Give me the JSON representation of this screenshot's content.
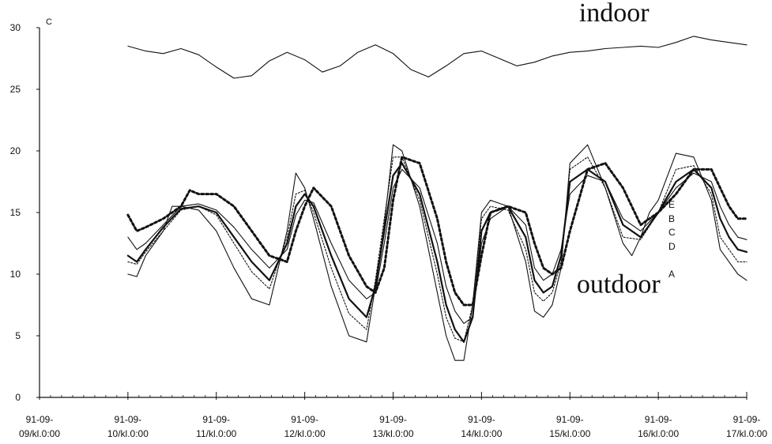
{
  "chart_data": {
    "type": "line",
    "title": "",
    "xlabel": "",
    "ylabel": "C",
    "ylim": [
      0,
      30
    ],
    "yticks": [
      0,
      5,
      10,
      15,
      20,
      25,
      30
    ],
    "xlim": [
      0,
      8
    ],
    "xticks": [
      {
        "value": 0,
        "line1": "91-09-",
        "line2": "09/kl.0:00"
      },
      {
        "value": 1,
        "line1": "91-09-",
        "line2": "10/kl.0:00"
      },
      {
        "value": 2,
        "line1": "91-09-",
        "line2": "11/kl.0:00"
      },
      {
        "value": 3,
        "line1": "91-09-",
        "line2": "12/kl.0:00"
      },
      {
        "value": 4,
        "line1": "91-09-",
        "line2": "13/kl.0:00"
      },
      {
        "value": 5,
        "line1": "91-09-",
        "line2": "14/kl.0:00"
      },
      {
        "value": 6,
        "line1": "91-09-",
        "line2": "15/kl.0:00"
      },
      {
        "value": 7,
        "line1": "91-09-",
        "line2": "16/kl.0:00"
      },
      {
        "value": 8,
        "line1": "91-09-",
        "line2": "17/kl.0:00"
      }
    ],
    "grid": false,
    "annotations": [
      {
        "text": "indoor",
        "x": 5.5,
        "y": 30.5
      },
      {
        "text": "outdoor",
        "x": 5.55,
        "y": 8.5
      }
    ],
    "series": [
      {
        "id": "indoor",
        "style": "solid-thin",
        "label": "",
        "x": [
          0.0,
          0.2,
          0.4,
          0.6,
          0.8,
          1.0,
          1.2,
          1.4,
          1.6,
          1.8,
          2.0,
          2.2,
          2.4,
          2.6,
          2.8,
          3.0,
          3.2,
          3.4,
          3.6,
          3.8,
          4.0,
          4.2,
          4.4,
          4.6,
          4.8,
          5.0,
          5.2,
          5.4,
          5.6,
          5.8,
          6.0,
          6.2,
          6.4,
          6.6,
          6.8,
          7.0
        ],
        "y": [
          28.5,
          28.1,
          27.9,
          28.3,
          27.8,
          26.8,
          25.9,
          26.1,
          27.3,
          28.0,
          27.4,
          26.4,
          26.9,
          28.0,
          28.6,
          27.9,
          26.6,
          26.0,
          26.9,
          27.9,
          28.1,
          27.5,
          26.9,
          27.2,
          27.7,
          28.0,
          28.1,
          28.3,
          28.4,
          28.5,
          28.4,
          28.8,
          29.3,
          29.0,
          28.8,
          28.6
        ]
      },
      {
        "id": "A",
        "style": "solid-thin",
        "label": "A",
        "x": [
          0.0,
          0.1,
          0.2,
          0.4,
          0.5,
          0.6,
          0.8,
          1.0,
          1.2,
          1.4,
          1.6,
          1.8,
          1.9,
          2.0,
          2.1,
          2.3,
          2.5,
          2.7,
          2.8,
          2.9,
          3.0,
          3.1,
          3.3,
          3.5,
          3.6,
          3.7,
          3.8,
          3.9,
          4.0,
          4.1,
          4.3,
          4.5,
          4.6,
          4.7,
          4.8,
          4.9,
          5.0,
          5.2,
          5.4,
          5.6,
          5.7,
          5.8,
          5.9,
          6.0,
          6.2,
          6.4,
          6.6,
          6.7,
          6.8,
          6.9,
          7.0
        ],
        "y": [
          10.0,
          9.8,
          11.5,
          13.5,
          15.5,
          15.5,
          15.2,
          13.5,
          10.5,
          8.0,
          7.5,
          13.5,
          18.2,
          17.0,
          14.5,
          9.0,
          5.0,
          4.5,
          9.0,
          14.0,
          20.5,
          20.0,
          15.5,
          8.5,
          5.0,
          3.0,
          3.0,
          7.5,
          15.0,
          16.0,
          15.5,
          11.0,
          7.0,
          6.5,
          7.5,
          10.5,
          19.0,
          20.5,
          17.0,
          12.5,
          11.5,
          13.0,
          15.0,
          16.0,
          19.8,
          19.5,
          16.0,
          12.0,
          11.0,
          10.0,
          9.5
        ]
      },
      {
        "id": "D",
        "style": "dotted-thin",
        "label": "D",
        "x": [
          0.0,
          0.1,
          0.2,
          0.4,
          0.6,
          0.8,
          1.0,
          1.2,
          1.4,
          1.6,
          1.8,
          1.9,
          2.0,
          2.1,
          2.3,
          2.5,
          2.7,
          2.8,
          2.9,
          3.0,
          3.1,
          3.3,
          3.5,
          3.6,
          3.7,
          3.8,
          3.9,
          4.0,
          4.1,
          4.3,
          4.5,
          4.6,
          4.7,
          4.8,
          4.9,
          5.0,
          5.2,
          5.4,
          5.6,
          5.8,
          6.0,
          6.2,
          6.4,
          6.6,
          6.7,
          6.8,
          6.9,
          7.0
        ],
        "y": [
          11.0,
          10.8,
          11.8,
          13.5,
          15.2,
          15.5,
          14.8,
          12.5,
          10.2,
          8.8,
          13.0,
          16.5,
          16.8,
          15.0,
          10.5,
          6.8,
          5.5,
          9.5,
          14.5,
          19.5,
          19.5,
          16.0,
          10.0,
          6.5,
          4.8,
          4.5,
          7.5,
          14.5,
          15.5,
          15.2,
          12.0,
          8.5,
          7.8,
          8.5,
          11.0,
          18.5,
          19.5,
          17.0,
          13.0,
          12.8,
          15.0,
          18.5,
          18.8,
          16.5,
          13.0,
          12.0,
          11.0,
          11.0
        ]
      },
      {
        "id": "C",
        "style": "solid-thick",
        "label": "C",
        "x": [
          0.0,
          0.1,
          0.2,
          0.4,
          0.6,
          0.8,
          1.0,
          1.2,
          1.4,
          1.6,
          1.8,
          1.9,
          2.0,
          2.1,
          2.3,
          2.5,
          2.7,
          2.8,
          2.9,
          3.0,
          3.1,
          3.3,
          3.5,
          3.6,
          3.7,
          3.8,
          3.9,
          4.0,
          4.1,
          4.3,
          4.5,
          4.6,
          4.7,
          4.8,
          4.9,
          5.0,
          5.2,
          5.4,
          5.6,
          5.8,
          6.0,
          6.2,
          6.4,
          6.6,
          6.7,
          6.8,
          6.9,
          7.0
        ],
        "y": [
          11.5,
          11.0,
          12.0,
          13.8,
          15.3,
          15.5,
          15.0,
          13.0,
          11.0,
          9.5,
          12.5,
          15.5,
          16.5,
          15.5,
          11.5,
          8.0,
          6.5,
          9.0,
          13.5,
          18.0,
          19.0,
          16.5,
          11.0,
          7.5,
          5.5,
          4.5,
          6.5,
          13.5,
          15.0,
          15.5,
          13.0,
          9.5,
          8.5,
          9.0,
          11.5,
          17.5,
          18.5,
          17.5,
          14.0,
          13.0,
          15.0,
          17.5,
          18.5,
          17.0,
          14.5,
          13.0,
          12.0,
          11.8
        ]
      },
      {
        "id": "B",
        "style": "solid-thin",
        "label": "B",
        "x": [
          0.0,
          0.1,
          0.2,
          0.4,
          0.6,
          0.8,
          1.0,
          1.2,
          1.4,
          1.6,
          1.8,
          1.9,
          2.0,
          2.1,
          2.3,
          2.5,
          2.7,
          2.8,
          2.9,
          3.0,
          3.1,
          3.3,
          3.5,
          3.6,
          3.7,
          3.8,
          3.9,
          4.0,
          4.1,
          4.3,
          4.5,
          4.6,
          4.7,
          4.8,
          4.9,
          5.0,
          5.2,
          5.4,
          5.6,
          5.8,
          6.0,
          6.2,
          6.4,
          6.6,
          6.7,
          6.8,
          6.9,
          7.0
        ],
        "y": [
          13.0,
          12.0,
          12.5,
          14.0,
          15.5,
          15.7,
          15.2,
          13.8,
          12.0,
          10.5,
          12.0,
          14.8,
          16.0,
          15.8,
          12.5,
          9.5,
          8.0,
          8.5,
          12.5,
          17.0,
          18.5,
          17.0,
          12.5,
          9.0,
          7.0,
          6.0,
          6.5,
          12.5,
          14.5,
          15.5,
          14.0,
          10.5,
          9.5,
          10.0,
          12.0,
          16.5,
          18.0,
          17.5,
          14.5,
          13.5,
          15.0,
          17.0,
          18.2,
          17.5,
          15.5,
          14.0,
          13.0,
          12.8
        ]
      },
      {
        "id": "E",
        "style": "dotted-thick",
        "label": "E",
        "x": [
          0.0,
          0.1,
          0.2,
          0.4,
          0.6,
          0.7,
          0.8,
          1.0,
          1.2,
          1.4,
          1.6,
          1.8,
          1.9,
          2.0,
          2.1,
          2.3,
          2.5,
          2.7,
          2.8,
          2.9,
          3.0,
          3.1,
          3.3,
          3.5,
          3.6,
          3.7,
          3.8,
          3.9,
          4.0,
          4.1,
          4.3,
          4.5,
          4.6,
          4.7,
          4.8,
          4.9,
          5.0,
          5.2,
          5.4,
          5.6,
          5.8,
          6.0,
          6.2,
          6.4,
          6.6,
          6.7,
          6.8,
          6.9,
          7.0
        ],
        "y": [
          14.8,
          13.5,
          13.8,
          14.5,
          15.5,
          16.8,
          16.5,
          16.5,
          15.5,
          13.5,
          11.5,
          11.0,
          13.5,
          15.5,
          17.0,
          15.5,
          11.5,
          9.0,
          8.5,
          10.5,
          16.0,
          19.5,
          19.0,
          14.5,
          11.0,
          8.5,
          7.5,
          7.5,
          11.5,
          15.0,
          15.5,
          15.0,
          12.5,
          10.5,
          10.0,
          10.5,
          13.5,
          18.5,
          19.0,
          17.0,
          14.0,
          15.0,
          16.5,
          18.5,
          18.5,
          17.0,
          15.5,
          14.5,
          14.5
        ]
      }
    ]
  }
}
